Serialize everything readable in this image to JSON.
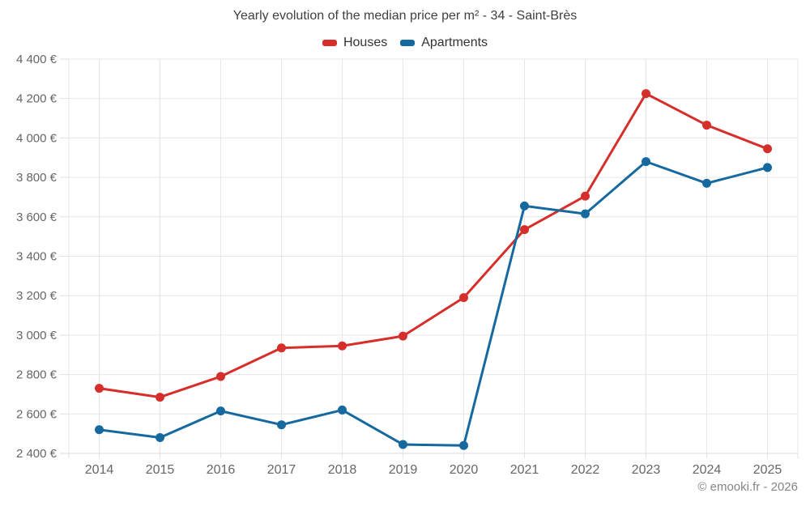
{
  "title": "Yearly evolution of the median price per m² - 34 - Saint-Brès",
  "footer": "© emooki.fr - 2026",
  "legend": [
    {
      "label": "Houses",
      "color": "#d62f2b"
    },
    {
      "label": "Apartments",
      "color": "#16699f"
    }
  ],
  "colors": {
    "houses": "#d62f2b",
    "apartments": "#16699f",
    "grid": "#e7e7e7",
    "axis_line": "#d9d9d9",
    "tick": "#e0e0e0",
    "axis_text": "#666666",
    "title_text": "#404040",
    "footer_text": "#848484"
  },
  "chart_data": {
    "type": "line",
    "title": "Yearly evolution of the median price per m² - 34 - Saint-Brès",
    "categories": [
      "2014",
      "2015",
      "2016",
      "2017",
      "2018",
      "2019",
      "2020",
      "2021",
      "2022",
      "2023",
      "2024",
      "2025"
    ],
    "series": [
      {
        "name": "Houses",
        "color": "#d62f2b",
        "values": [
          2730,
          2685,
          2790,
          2935,
          2945,
          2995,
          3190,
          3535,
          3705,
          4225,
          4065,
          3945
        ]
      },
      {
        "name": "Apartments",
        "color": "#16699f",
        "values": [
          2520,
          2480,
          2615,
          2545,
          2620,
          2445,
          2440,
          3655,
          3615,
          3880,
          3770,
          3850
        ]
      }
    ],
    "xlabel": "",
    "ylabel": "",
    "ylim": [
      2400,
      4400
    ],
    "y_ticks": [
      2400,
      2600,
      2800,
      3000,
      3200,
      3400,
      3600,
      3800,
      4000,
      4200,
      4400
    ],
    "y_tick_labels": [
      "2 400 €",
      "2 600 €",
      "2 800 €",
      "3 000 €",
      "3 200 €",
      "3 400 €",
      "3 600 €",
      "3 800 €",
      "4 000 €",
      "4 200 €",
      "4 400 €"
    ],
    "grid": true,
    "legend_position": "top",
    "marker": "circle"
  }
}
